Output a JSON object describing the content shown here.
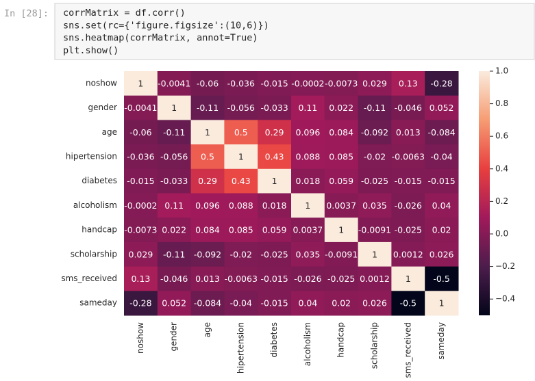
{
  "cell": {
    "prompt": "In [28]:",
    "code": [
      "corrMatrix = df.corr()",
      "sns.set(rc={'figure.figsize':(10,6)})",
      "sns.heatmap(corrMatrix, annot=True)",
      "plt.show()"
    ]
  },
  "chart_data": {
    "type": "heatmap",
    "colormap": "rocket",
    "categories": [
      "noshow",
      "gender",
      "age",
      "hipertension",
      "diabetes",
      "alcoholism",
      "handcap",
      "scholarship",
      "sms_received",
      "sameday"
    ],
    "values": [
      [
        1,
        -0.0041,
        -0.06,
        -0.036,
        -0.015,
        -0.0002,
        -0.0073,
        0.029,
        0.13,
        -0.28
      ],
      [
        -0.0041,
        1,
        -0.11,
        -0.056,
        -0.033,
        0.11,
        0.022,
        -0.11,
        -0.046,
        0.052
      ],
      [
        -0.06,
        -0.11,
        1,
        0.5,
        0.29,
        0.096,
        0.084,
        -0.092,
        0.013,
        -0.084
      ],
      [
        -0.036,
        -0.056,
        0.5,
        1,
        0.43,
        0.088,
        0.085,
        -0.02,
        -0.0063,
        -0.04
      ],
      [
        -0.015,
        -0.033,
        0.29,
        0.43,
        1,
        0.018,
        0.059,
        -0.025,
        -0.015,
        -0.015
      ],
      [
        -0.0002,
        0.11,
        0.096,
        0.088,
        0.018,
        1,
        0.0037,
        0.035,
        -0.026,
        0.04
      ],
      [
        -0.0073,
        0.022,
        0.084,
        0.085,
        0.059,
        0.0037,
        1,
        -0.0091,
        -0.025,
        0.02
      ],
      [
        0.029,
        -0.11,
        -0.092,
        -0.02,
        -0.025,
        0.035,
        -0.0091,
        1,
        0.0012,
        0.026
      ],
      [
        0.13,
        -0.046,
        0.013,
        -0.0063,
        -0.015,
        -0.026,
        -0.025,
        0.0012,
        1,
        -0.5
      ],
      [
        -0.28,
        0.052,
        -0.084,
        -0.04,
        -0.015,
        0.04,
        0.02,
        0.026,
        -0.5,
        1
      ]
    ],
    "clim": [
      -0.5,
      1
    ],
    "cticks": [
      {
        "value": 1,
        "label": "1.0"
      },
      {
        "value": 0.8,
        "label": "0.8"
      },
      {
        "value": 0.6,
        "label": "0.6"
      },
      {
        "value": 0.4,
        "label": "0.4"
      },
      {
        "value": 0.2,
        "label": "0.2"
      },
      {
        "value": 0,
        "label": "0.0"
      },
      {
        "value": -0.2,
        "label": "−0.2"
      },
      {
        "value": -0.4,
        "label": "−0.4"
      }
    ]
  }
}
